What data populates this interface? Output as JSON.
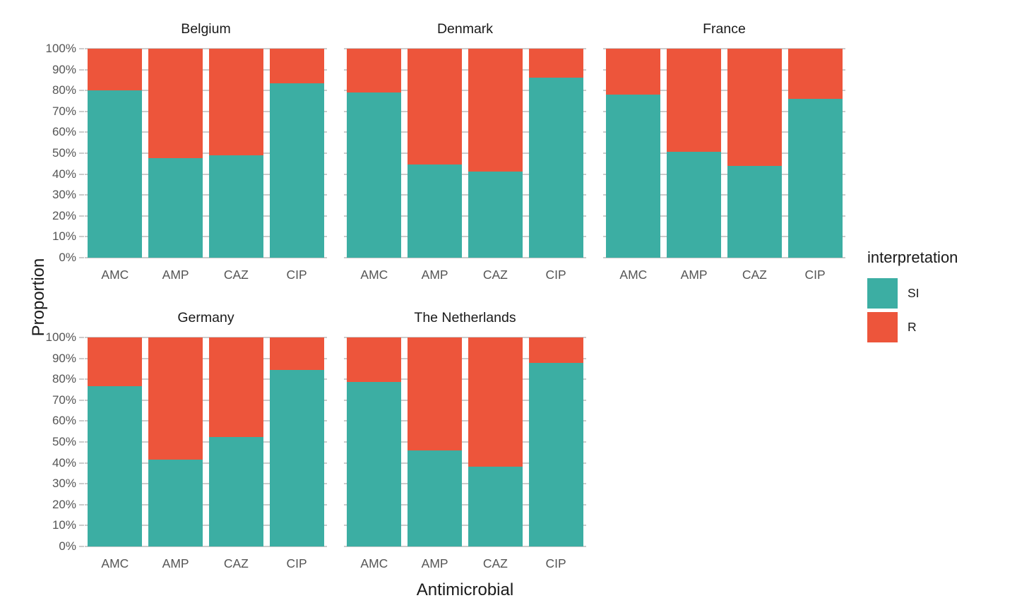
{
  "figure": {
    "ylabel": "Proportion",
    "xlabel": "Antimicrobial"
  },
  "legend": {
    "title": "interpretation",
    "items": [
      {
        "label": "SI",
        "color": "#3CAEA3"
      },
      {
        "label": "R",
        "color": "#ED553B"
      }
    ]
  },
  "chart_data": {
    "type": "bar",
    "variant": "stacked-percent",
    "title": "",
    "xlabel": "Antimicrobial",
    "ylabel": "Proportion",
    "categories": [
      "AMC",
      "AMP",
      "CAZ",
      "CIP"
    ],
    "ylim": [
      0,
      100
    ],
    "ytick_labels": [
      "0%",
      "10%",
      "20%",
      "30%",
      "40%",
      "50%",
      "60%",
      "70%",
      "80%",
      "90%",
      "100%"
    ],
    "grid": true,
    "legend_position": "right",
    "series_colors": {
      "SI": "#3CAEA3",
      "R": "#ED553B"
    },
    "facets": [
      {
        "name": "Belgium",
        "series": [
          {
            "name": "SI",
            "values": [
              79.9,
              47.7,
              49.1,
              83.4
            ]
          },
          {
            "name": "R",
            "values": [
              20.1,
              52.3,
              50.9,
              16.6
            ]
          }
        ]
      },
      {
        "name": "Denmark",
        "series": [
          {
            "name": "SI",
            "values": [
              79.2,
              44.7,
              41.1,
              86.2
            ]
          },
          {
            "name": "R",
            "values": [
              20.8,
              55.3,
              58.9,
              13.8
            ]
          }
        ]
      },
      {
        "name": "France",
        "series": [
          {
            "name": "SI",
            "values": [
              78.1,
              50.8,
              43.8,
              76.1
            ]
          },
          {
            "name": "R",
            "values": [
              21.9,
              49.2,
              56.2,
              23.9
            ]
          }
        ]
      },
      {
        "name": "Germany",
        "series": [
          {
            "name": "SI",
            "values": [
              76.7,
              41.5,
              52.3,
              84.6
            ]
          },
          {
            "name": "R",
            "values": [
              23.3,
              58.5,
              47.7,
              15.4
            ]
          }
        ]
      },
      {
        "name": "The Netherlands",
        "series": [
          {
            "name": "SI",
            "values": [
              78.6,
              46.0,
              38.1,
              87.9
            ]
          },
          {
            "name": "R",
            "values": [
              21.4,
              54.0,
              61.9,
              12.1
            ]
          }
        ]
      }
    ]
  },
  "style": {
    "grid_color": "#CBCBCB",
    "tick_label_color": "#555555",
    "text_color": "#1A1A1A",
    "background": "#FFFFFF"
  }
}
